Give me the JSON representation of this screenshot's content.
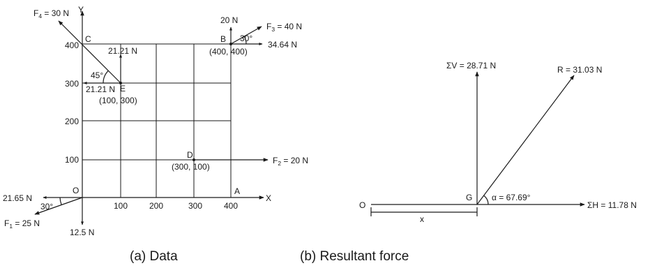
{
  "panel_a": {
    "caption": "(a) Data",
    "axes": {
      "x_label": "X",
      "y_label": "Y"
    },
    "x_ticks": [
      "100",
      "200",
      "300",
      "400"
    ],
    "y_ticks": [
      "100",
      "200",
      "300",
      "400"
    ],
    "points": {
      "O": "O",
      "A": "A",
      "B": "B",
      "B_coord": "(400, 400)",
      "C": "C",
      "D": "D",
      "D_coord": "(300, 100)",
      "E": "E",
      "E_coord": "(100, 300)"
    },
    "forces": {
      "F1_name": "F",
      "F1_sub": "1",
      "F1_val": " = 25 N",
      "F2_name": "F",
      "F2_sub": "2",
      "F2_val": " = 20 N",
      "F3_name": "F",
      "F3_sub": "3",
      "F3_val": " = 40 N",
      "F4_name": "F",
      "F4_sub": "4",
      "F4_val": " = 30 N"
    },
    "components": {
      "f1_h": "21.65 N",
      "f1_v": "12.5 N",
      "f3_h": "34.64 N",
      "f3_v": "20 N",
      "f4_h": "21.21 N",
      "f4_v": "21.21 N"
    },
    "angles": {
      "f1": "30°",
      "f3": "30°",
      "f4": "45°"
    }
  },
  "panel_b": {
    "caption": "(b)   Resultant force",
    "points": {
      "O": "O",
      "G": "G"
    },
    "sum_v": "ΣV = 28.71 N",
    "sum_h": "ΣH = 11.78 N",
    "resultant": "R = 31.03 N",
    "alpha": "α = 67.69°",
    "x_label": "x"
  }
}
